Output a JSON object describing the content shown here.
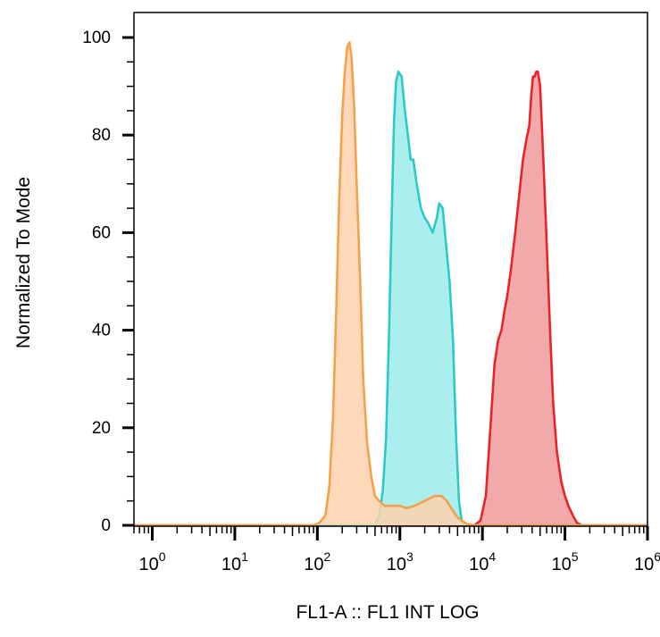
{
  "chart_data": {
    "type": "area",
    "xlabel": "FL1-A :: FL1 INT LOG",
    "ylabel": "Normalized To Mode",
    "x_scale": "log",
    "xlim": [
      0.6,
      1000000
    ],
    "ylim": [
      0,
      100
    ],
    "x_ticks": [
      {
        "value": 1,
        "base": "10",
        "exp": "0"
      },
      {
        "value": 10,
        "base": "10",
        "exp": "1"
      },
      {
        "value": 100,
        "base": "10",
        "exp": "2"
      },
      {
        "value": 1000,
        "base": "10",
        "exp": "3"
      },
      {
        "value": 10000,
        "base": "10",
        "exp": "4"
      },
      {
        "value": 100000,
        "base": "10",
        "exp": "5"
      },
      {
        "value": 1000000,
        "base": "10",
        "exp": "6"
      }
    ],
    "y_ticks": [
      {
        "value": 0,
        "label": "0"
      },
      {
        "value": 20,
        "label": "20"
      },
      {
        "value": 40,
        "label": "40"
      },
      {
        "value": 60,
        "label": "60"
      },
      {
        "value": 80,
        "label": "80"
      },
      {
        "value": 100,
        "label": "100"
      }
    ],
    "grid": false,
    "series": [
      {
        "line_color": "#e8242a",
        "fill_color": "#ef9a9a",
        "points": [
          [
            0.6,
            0
          ],
          [
            8000,
            0
          ],
          [
            9500,
            1
          ],
          [
            11000,
            6
          ],
          [
            12500,
            20
          ],
          [
            14000,
            33
          ],
          [
            15500,
            38
          ],
          [
            17000,
            40
          ],
          [
            18500,
            44
          ],
          [
            20000,
            47
          ],
          [
            22000,
            52
          ],
          [
            25000,
            60
          ],
          [
            28000,
            68
          ],
          [
            31000,
            75
          ],
          [
            34000,
            79
          ],
          [
            37000,
            82
          ],
          [
            39000,
            88
          ],
          [
            41000,
            92
          ],
          [
            43000,
            92
          ],
          [
            45000,
            93
          ],
          [
            47000,
            93
          ],
          [
            50000,
            90
          ],
          [
            55000,
            74
          ],
          [
            60000,
            58
          ],
          [
            66000,
            40
          ],
          [
            72000,
            25
          ],
          [
            80000,
            15
          ],
          [
            90000,
            9
          ],
          [
            100000,
            6
          ],
          [
            110000,
            4
          ],
          [
            125000,
            2
          ],
          [
            140000,
            0.5
          ],
          [
            160000,
            0
          ],
          [
            1000000,
            0
          ]
        ]
      },
      {
        "line_color": "#2dc9c9",
        "fill_color": "#9beceb",
        "points": [
          [
            0.6,
            0
          ],
          [
            500,
            0
          ],
          [
            560,
            2
          ],
          [
            620,
            7
          ],
          [
            680,
            18
          ],
          [
            740,
            40
          ],
          [
            800,
            65
          ],
          [
            850,
            83
          ],
          [
            900,
            91
          ],
          [
            960,
            93
          ],
          [
            1050,
            92
          ],
          [
            1150,
            85
          ],
          [
            1250,
            80
          ],
          [
            1350,
            75
          ],
          [
            1450,
            75
          ],
          [
            1600,
            70
          ],
          [
            1800,
            65
          ],
          [
            2000,
            63
          ],
          [
            2200,
            62
          ],
          [
            2500,
            60
          ],
          [
            2800,
            63
          ],
          [
            3000,
            66
          ],
          [
            3300,
            65
          ],
          [
            3600,
            58
          ],
          [
            4000,
            50
          ],
          [
            4400,
            38
          ],
          [
            4800,
            18
          ],
          [
            5200,
            5
          ],
          [
            5600,
            1
          ],
          [
            6000,
            0
          ],
          [
            1000000,
            0
          ]
        ]
      },
      {
        "line_color": "#f5a04a",
        "fill_color": "#fdd2ae",
        "points": [
          [
            0.6,
            0
          ],
          [
            90,
            0
          ],
          [
            105,
            0.5
          ],
          [
            125,
            2
          ],
          [
            140,
            8
          ],
          [
            155,
            22
          ],
          [
            170,
            45
          ],
          [
            185,
            68
          ],
          [
            200,
            84
          ],
          [
            215,
            93
          ],
          [
            230,
            98
          ],
          [
            245,
            99
          ],
          [
            260,
            96
          ],
          [
            280,
            85
          ],
          [
            300,
            70
          ],
          [
            330,
            50
          ],
          [
            360,
            30
          ],
          [
            400,
            17
          ],
          [
            450,
            10
          ],
          [
            500,
            6
          ],
          [
            560,
            5
          ],
          [
            650,
            4
          ],
          [
            800,
            4
          ],
          [
            1000,
            4
          ],
          [
            1200,
            3.5
          ],
          [
            1500,
            4
          ],
          [
            2000,
            5
          ],
          [
            2600,
            6
          ],
          [
            3200,
            6
          ],
          [
            3700,
            5
          ],
          [
            4200,
            3.5
          ],
          [
            4800,
            2
          ],
          [
            5500,
            1
          ],
          [
            6500,
            0.3
          ],
          [
            8000,
            0
          ],
          [
            1000000,
            0
          ]
        ]
      }
    ]
  }
}
